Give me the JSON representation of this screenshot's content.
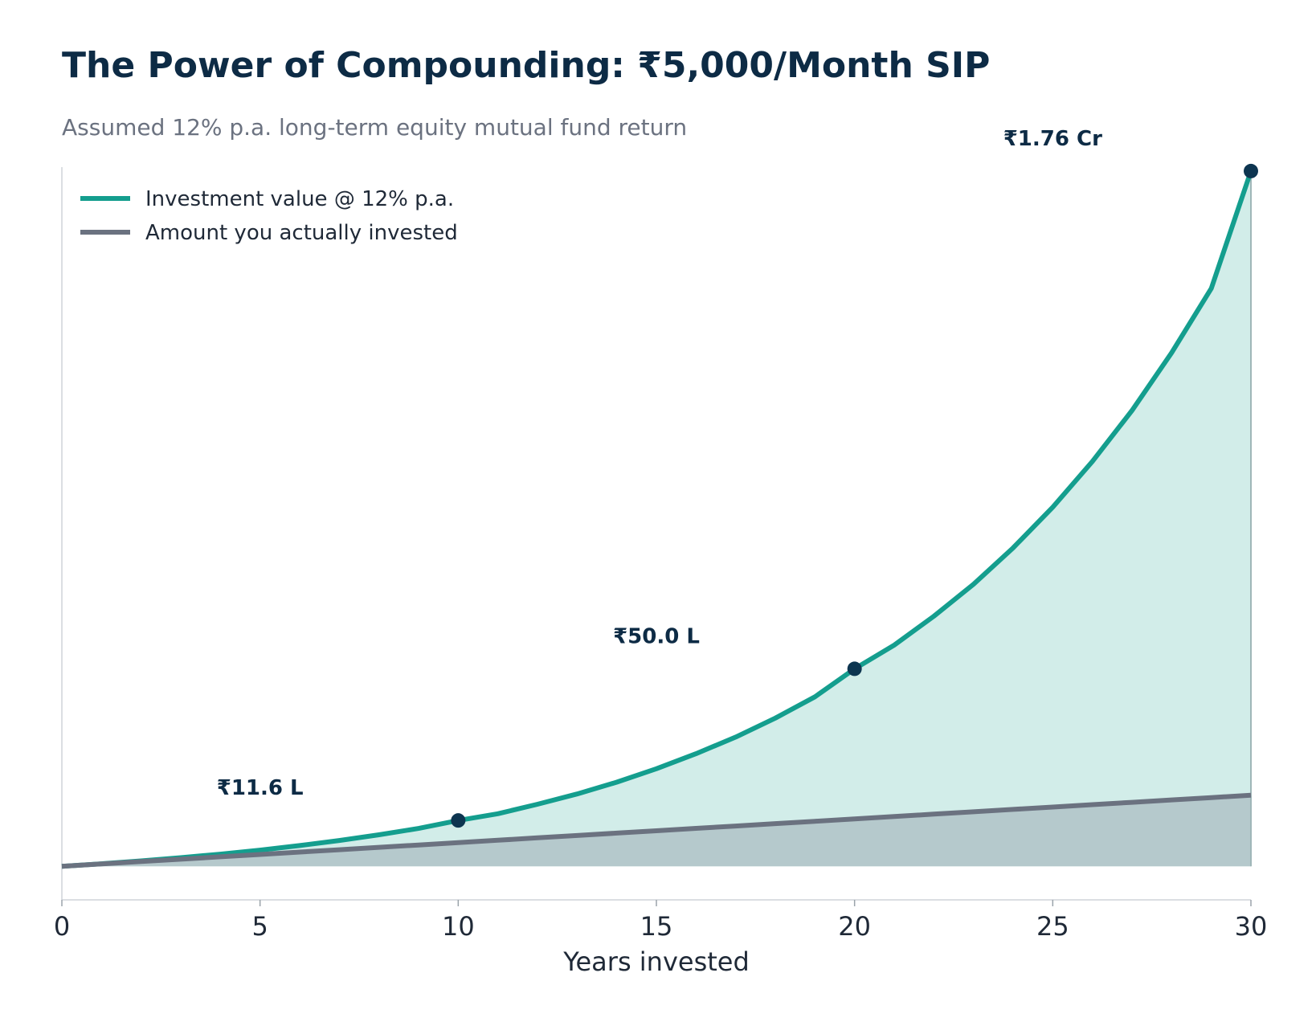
{
  "title": "The Power of Compounding: ₹5,000/Month SIP",
  "subtitle": "Assumed 12% p.a. long-term equity mutual fund return",
  "colors": {
    "value_line": "#149e8e",
    "value_fill": "#d2ede9",
    "invested_line": "#6b7280",
    "invested_fill": "#b5c9cc",
    "marker": "#0d3550",
    "title": "#0d2b45"
  },
  "chart_data": {
    "type": "area",
    "xlabel": "Years invested",
    "ylabel": "",
    "xlim": [
      0,
      30
    ],
    "ylim": [
      -8.5,
      177
    ],
    "y_unit": "₹ lakh",
    "y_ticks_shown": false,
    "x_ticks": [
      "0",
      "5",
      "10",
      "15",
      "20",
      "25",
      "30"
    ],
    "grid": false,
    "legend_placement": "top-left",
    "x": [
      0,
      1,
      2,
      3,
      4,
      5,
      6,
      7,
      8,
      9,
      10,
      11,
      12,
      13,
      14,
      15,
      16,
      17,
      18,
      19,
      20,
      21,
      22,
      23,
      24,
      25,
      26,
      27,
      28,
      29,
      30
    ],
    "series": [
      {
        "name": "Investment value @ 12% p.a.",
        "values": [
          0,
          0.64,
          1.36,
          2.17,
          3.08,
          4.1,
          5.25,
          6.53,
          7.97,
          9.59,
          11.6,
          13.3,
          15.7,
          18.3,
          21.3,
          24.7,
          28.5,
          32.7,
          37.5,
          42.9,
          50.0,
          56.0,
          63.3,
          71.4,
          80.6,
          90.9,
          102.5,
          115.4,
          130.0,
          146.3,
          176.0
        ]
      },
      {
        "name": "Amount you actually invested",
        "values": [
          0,
          0.6,
          1.2,
          1.8,
          2.4,
          3.0,
          3.6,
          4.2,
          4.8,
          5.4,
          6.0,
          6.6,
          7.2,
          7.8,
          8.4,
          9.0,
          9.6,
          10.2,
          10.8,
          11.4,
          12.0,
          12.6,
          13.2,
          13.8,
          14.4,
          15.0,
          15.6,
          16.2,
          16.8,
          17.4,
          18.0
        ]
      }
    ],
    "annotations": [
      {
        "x": 10,
        "y": 11.6,
        "label": "₹11.6 L"
      },
      {
        "x": 20,
        "y": 50.0,
        "label": "₹50.0 L"
      },
      {
        "x": 30,
        "y": 176.0,
        "label": "₹1.76 Cr"
      }
    ]
  }
}
